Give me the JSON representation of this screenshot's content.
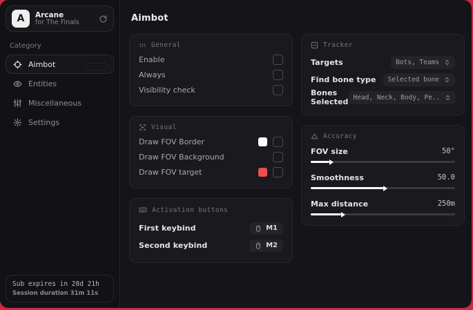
{
  "colors": {
    "frame_red": "#cd2a45",
    "fov_border_swatch": "#ffffff",
    "fov_target_swatch": "#ef4b50"
  },
  "app": {
    "name": "Arcane",
    "subtitle": "for The Finals",
    "logo_letter": "A"
  },
  "sidebar": {
    "category_label": "Category",
    "items": [
      {
        "label": "Aimbot",
        "icon": "crosshair-icon",
        "active": true
      },
      {
        "label": "Entities",
        "icon": "eye-icon",
        "active": false
      },
      {
        "label": "Miscellaneous",
        "icon": "sliders-icon",
        "active": false
      },
      {
        "label": "Settings",
        "icon": "gear-icon",
        "active": false
      }
    ],
    "footer": {
      "sub_expiry": "Sub expires in 28d 21h",
      "session_duration": "Session duration 31m 11s"
    }
  },
  "main": {
    "title": "Aimbot",
    "general": {
      "title": "General",
      "rows": [
        {
          "label": "Enable",
          "checked": false
        },
        {
          "label": "Always",
          "checked": false
        },
        {
          "label": "Visibility check",
          "checked": false
        }
      ]
    },
    "visual": {
      "title": "Visual",
      "rows": [
        {
          "label": "Draw FOV Border",
          "swatch": "#ffffff",
          "checked": false
        },
        {
          "label": "Draw FOV Background",
          "checked": false
        },
        {
          "label": "Draw FOV target",
          "swatch": "#ef4b50",
          "checked": false
        }
      ]
    },
    "activation": {
      "title": "Activation buttons",
      "rows": [
        {
          "label": "First keybind",
          "key": "M1"
        },
        {
          "label": "Second keybind",
          "key": "M2"
        }
      ]
    },
    "tracker": {
      "title": "Tracker",
      "rows": [
        {
          "label": "Targets",
          "value": "Bots, Teams"
        },
        {
          "label": "Find bone type",
          "value": "Selected bone"
        },
        {
          "label": "Bones Selected",
          "value": "Head, Neck, Body, Pe.."
        }
      ]
    },
    "accuracy": {
      "title": "Accuracy",
      "rows": [
        {
          "label": "FOV size",
          "value": "50°",
          "percent": 13
        },
        {
          "label": "Smoothness",
          "value": "50.0",
          "percent": 50
        },
        {
          "label": "Max distance",
          "value": "250m",
          "percent": 21
        }
      ]
    }
  }
}
